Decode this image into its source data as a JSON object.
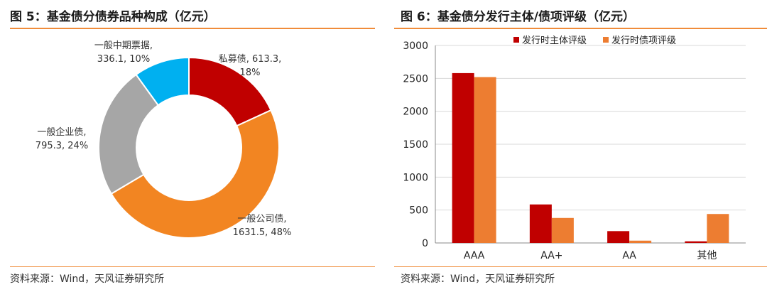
{
  "left": {
    "title": "图 5：基金债分债券品种构成（亿元）",
    "source": "资料来源：Wind，天风证券研究所"
  },
  "right": {
    "title": "图 6：基金债分发行主体/债项评级（亿元）",
    "source": "资料来源：Wind，天风证券研究所"
  },
  "chart_data": [
    {
      "type": "pie",
      "style": "donut",
      "slices": [
        {
          "label_line1": "私募债, 613.3,",
          "label_line2": "18%",
          "value": 613.3,
          "percent": 18,
          "color": "#c00000"
        },
        {
          "label_line1": "一般公司债,",
          "label_line2": "1631.5, 48%",
          "value": 1631.5,
          "percent": 48,
          "color": "#f28522"
        },
        {
          "label_line1": "一般企业债,",
          "label_line2": "795.3, 24%",
          "value": 795.3,
          "percent": 24,
          "color": "#a6a6a6"
        },
        {
          "label_line1": "一般中期票据,",
          "label_line2": "336.1, 10%",
          "value": 336.1,
          "percent": 10,
          "color": "#00b0f0"
        }
      ]
    },
    {
      "type": "bar",
      "categories": [
        "AAA",
        "AA+",
        "AA",
        "其他"
      ],
      "series": [
        {
          "name": "发行时主体评级",
          "values": [
            2580,
            585,
            180,
            25
          ],
          "color": "#c00000"
        },
        {
          "name": "发行时债项评级",
          "values": [
            2520,
            380,
            35,
            440
          ],
          "color": "#ed7d31"
        }
      ],
      "yticks": [
        "0",
        "500",
        "1000",
        "1500",
        "2000",
        "2500",
        "3000"
      ],
      "ylim": [
        0,
        3000
      ],
      "legend": "top",
      "grid": true
    }
  ]
}
